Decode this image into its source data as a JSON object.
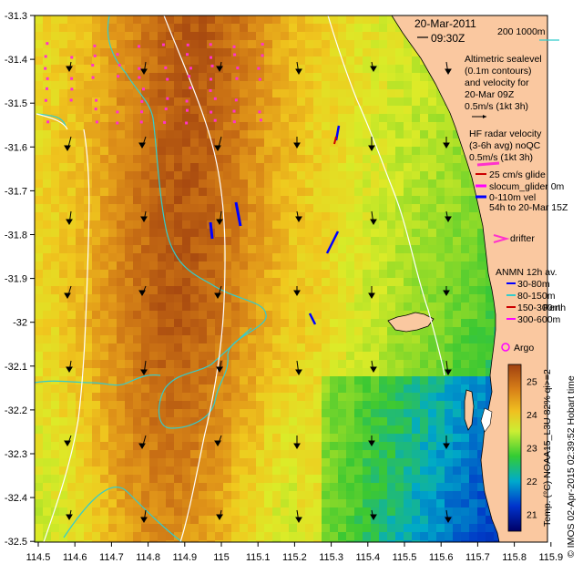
{
  "map": {
    "date": "20-Mar-2011",
    "time": "09:30Z",
    "scale_label": "200 1000m",
    "x_ticks": [
      "114.5",
      "114.6",
      "114.7",
      "114.8",
      "114.9",
      "115",
      "115.1",
      "115.2",
      "115.3",
      "115.4",
      "115.5",
      "115.6",
      "115.7",
      "115.8",
      "115.9"
    ],
    "y_ticks": [
      "-31.3",
      "-31.4",
      "-31.5",
      "-31.6",
      "-31.7",
      "-31.8",
      "-31.9",
      "-32",
      "-32.1",
      "-32.2",
      "-32.3",
      "-32.4",
      "-32.5"
    ],
    "extent": {
      "lon": [
        114.5,
        115.9
      ],
      "lat": [
        -32.5,
        -31.3
      ]
    }
  },
  "legend": {
    "altimetric": [
      "Altimetric sealevel",
      "(0.1m contours)",
      "and velocity for",
      "20-Mar 09Z",
      "0.5m/s (1kt 3h)"
    ],
    "hf_radar": [
      "HF radar velocity",
      "(3-6h avg) noQC",
      "0.5m/s (1kt 3h)"
    ],
    "glider": [
      "25 cm/s glide",
      "slocum_glider 0m",
      "0-110m vel",
      "54h to 20-Mar 15Z"
    ],
    "drifter": "drifter",
    "anmn_title": "ANMN 12h av.",
    "anmn_items": [
      "30-80m",
      "80-150m",
      "150-300m",
      "300-600m"
    ],
    "place": "Perth",
    "argo": "Argo"
  },
  "colorbar": {
    "label": "Temp. (°C) NOAA15_L3U 82% qi>=2",
    "ticks": [
      "25",
      "24",
      "23",
      "22",
      "21"
    ],
    "range": [
      20.5,
      25.5
    ]
  },
  "footer": "© IMOS 02-Apr-2015 02:39:52 Hobart time",
  "colors": {
    "land": "#fac8a0",
    "contour": "#33cccc",
    "radar_vector": "#ff33cc",
    "glider": "#0000ff",
    "anmn_1": "#0000ff",
    "anmn_2": "#33cccc",
    "anmn_3": "#cc0000",
    "anmn_4": "#ff00ff"
  }
}
